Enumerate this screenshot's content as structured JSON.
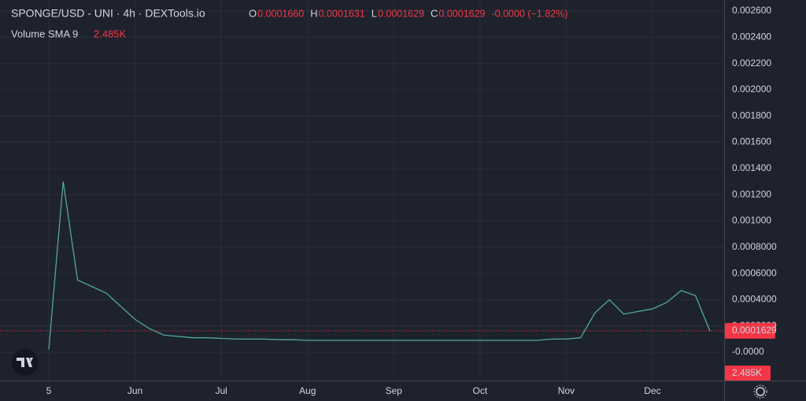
{
  "chart_data": {
    "type": "line",
    "title": "SPONGE/USD - UNI · 4h · DEXTools.io",
    "ohlc": [
      {
        "key": "O",
        "value": "0.0001660"
      },
      {
        "key": "H",
        "value": "0.0001631"
      },
      {
        "key": "L",
        "value": "0.0001629"
      },
      {
        "key": "C",
        "value": "0.0001629"
      }
    ],
    "change": "-0.0000 (−1.82%)",
    "indicator": {
      "name": "Volume SMA 9",
      "value": "2.485K"
    },
    "categories": [
      "5",
      null,
      null,
      null,
      null,
      null,
      "Jun",
      null,
      null,
      null,
      null,
      null,
      "Jul",
      null,
      null,
      null,
      null,
      null,
      "Aug",
      null,
      null,
      null,
      null,
      null,
      "Sep",
      null,
      null,
      null,
      null,
      null,
      "Oct",
      null,
      null,
      null,
      null,
      null,
      "Nov",
      null,
      null,
      null,
      null,
      null,
      "Dec",
      null,
      null,
      null,
      null
    ],
    "series": [
      {
        "name": "SPONGE/USD",
        "color": "#4fa89e",
        "values": [
          2e-05,
          0.0013,
          0.00055,
          0.0005,
          0.00045,
          0.00035,
          0.00025,
          0.00018,
          0.00013,
          0.00012,
          0.00011,
          0.00011,
          0.000105,
          0.0001,
          0.0001,
          0.0001,
          9.5e-05,
          9.5e-05,
          9e-05,
          9e-05,
          9e-05,
          9e-05,
          9e-05,
          9e-05,
          9e-05,
          9e-05,
          9e-05,
          9e-05,
          9e-05,
          9e-05,
          9e-05,
          9e-05,
          9e-05,
          9e-05,
          9e-05,
          0.0001,
          0.0001,
          0.00011,
          0.0003,
          0.0004,
          0.00029,
          0.00031,
          0.00033,
          0.00038,
          0.00047,
          0.00043,
          0.00016
        ]
      }
    ],
    "ylim": [
      -0.000216,
      0.002684
    ],
    "yticks": [
      {
        "value": 0,
        "label": "-0.0000"
      },
      {
        "value": 0.0002,
        "label": "0.0002000"
      },
      {
        "value": 0.0004,
        "label": "0.0004000"
      },
      {
        "value": 0.0006,
        "label": "0.0006000"
      },
      {
        "value": 0.0008,
        "label": "0.0008000"
      },
      {
        "value": 0.001,
        "label": "0.001000"
      },
      {
        "value": 0.0012,
        "label": "0.001200"
      },
      {
        "value": 0.0014,
        "label": "0.001400"
      },
      {
        "value": 0.0016,
        "label": "0.001600"
      },
      {
        "value": 0.0018,
        "label": "0.001800"
      },
      {
        "value": 0.002,
        "label": "0.002000"
      },
      {
        "value": 0.0022,
        "label": "0.002200"
      },
      {
        "value": 0.0024,
        "label": "0.002400"
      },
      {
        "value": 0.0026,
        "label": "0.002600"
      }
    ],
    "last_price": {
      "value": 0.0001629,
      "label": "0.0001629",
      "color": "#f23645"
    },
    "volume_label": "2.485K",
    "grid": true
  }
}
